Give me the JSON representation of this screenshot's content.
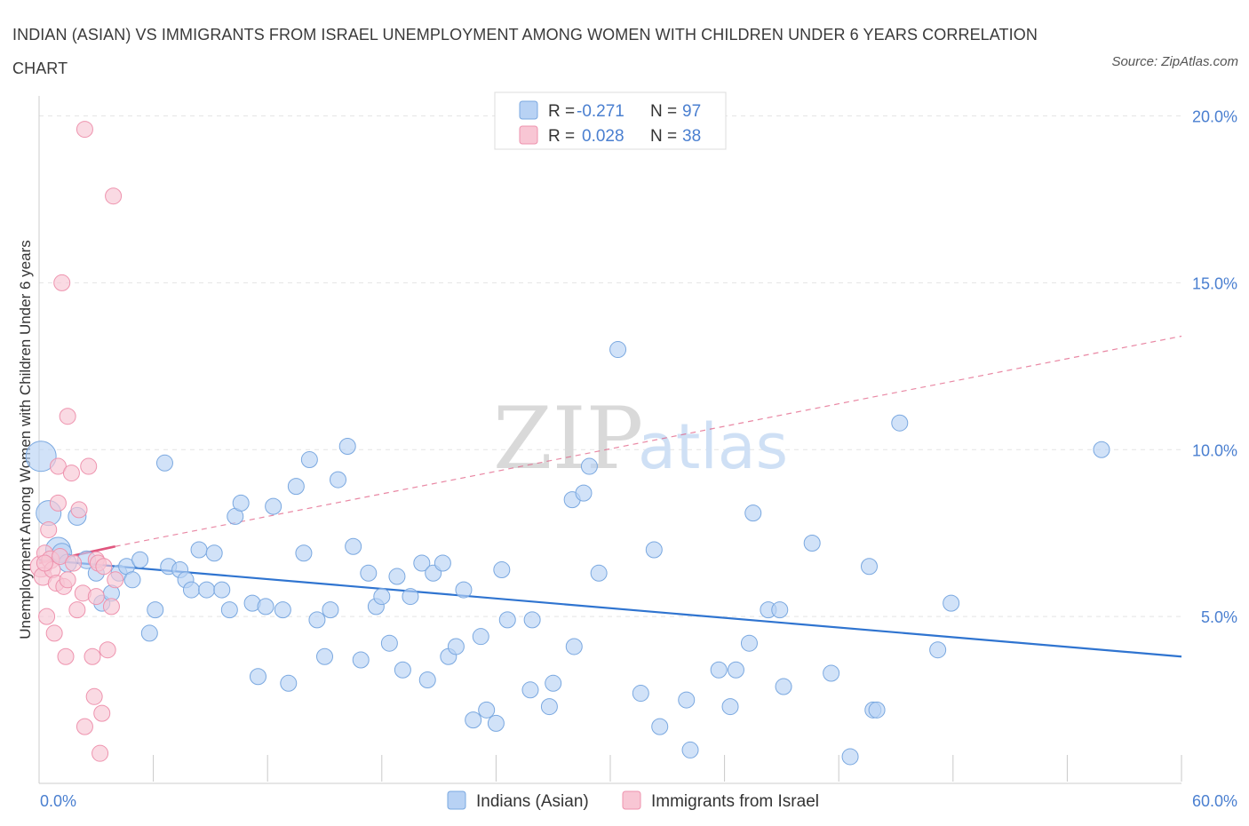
{
  "title": "INDIAN (ASIAN) VS IMMIGRANTS FROM ISRAEL UNEMPLOYMENT AMONG WOMEN WITH CHILDREN UNDER 6 YEARS CORRELATION CHART",
  "source": "Source: ZipAtlas.com",
  "watermark": {
    "zip": "ZIP",
    "atlas": "atlas"
  },
  "colors": {
    "blue_fill": "#b8d2f4",
    "blue_stroke": "#7aa8e0",
    "blue_line": "#2f74d0",
    "pink_fill": "#f8c6d4",
    "pink_stroke": "#ee93ae",
    "pink_line": "#e0557e",
    "tick_text": "#4a7fd0",
    "grid": "#e4e4e4"
  },
  "legend": {
    "rows": [
      {
        "r_label": "R =",
        "r_value": "-0.271",
        "n_label": "N =",
        "n_value": "97"
      },
      {
        "r_label": "R =",
        "r_value": "0.028",
        "n_label": "N =",
        "n_value": "38"
      }
    ]
  },
  "chart_data": {
    "type": "scatter",
    "title": "INDIAN (ASIAN) VS IMMIGRANTS FROM ISRAEL UNEMPLOYMENT AMONG WOMEN WITH CHILDREN UNDER 6 YEARS CORRELATION CHART",
    "xlabel": "",
    "ylabel": "Unemployment Among Women with Children Under 6 years",
    "xlim": [
      0,
      60
    ],
    "ylim": [
      0,
      20.6
    ],
    "x_tick_labels": [
      "0.0%",
      "60.0%"
    ],
    "y_ticks": [
      5,
      10,
      15,
      20
    ],
    "y_tick_labels": [
      "5.0%",
      "10.0%",
      "15.0%",
      "20.0%"
    ],
    "grid": true,
    "legend_position": "bottom",
    "series": [
      {
        "name": "Indians (Asian)",
        "r": -0.271,
        "n": 97,
        "trend": {
          "x": [
            0,
            60
          ],
          "y": [
            6.7,
            3.8
          ],
          "style": "solid"
        },
        "points": [
          {
            "x": 0.1,
            "y": 9.8,
            "s": 17
          },
          {
            "x": 0.5,
            "y": 8.1,
            "s": 14
          },
          {
            "x": 1.0,
            "y": 7.0,
            "s": 14
          },
          {
            "x": 1.2,
            "y": 6.9,
            "s": 11
          },
          {
            "x": 1.5,
            "y": 6.6,
            "s": 10
          },
          {
            "x": 2.0,
            "y": 8.0,
            "s": 10
          },
          {
            "x": 2.5,
            "y": 6.7,
            "s": 10
          },
          {
            "x": 3.0,
            "y": 6.3,
            "s": 9
          },
          {
            "x": 3.3,
            "y": 5.4,
            "s": 9
          },
          {
            "x": 3.8,
            "y": 5.7,
            "s": 9
          },
          {
            "x": 4.2,
            "y": 6.3,
            "s": 9
          },
          {
            "x": 4.6,
            "y": 6.5,
            "s": 9
          },
          {
            "x": 4.9,
            "y": 6.1,
            "s": 9
          },
          {
            "x": 5.3,
            "y": 6.7,
            "s": 9
          },
          {
            "x": 5.8,
            "y": 4.5,
            "s": 9
          },
          {
            "x": 6.1,
            "y": 5.2,
            "s": 9
          },
          {
            "x": 6.6,
            "y": 9.6,
            "s": 9
          },
          {
            "x": 6.8,
            "y": 6.5,
            "s": 9
          },
          {
            "x": 7.4,
            "y": 6.4,
            "s": 9
          },
          {
            "x": 7.7,
            "y": 6.1,
            "s": 9
          },
          {
            "x": 8.0,
            "y": 5.8,
            "s": 9
          },
          {
            "x": 8.4,
            "y": 7.0,
            "s": 9
          },
          {
            "x": 8.8,
            "y": 5.8,
            "s": 9
          },
          {
            "x": 9.2,
            "y": 6.9,
            "s": 9
          },
          {
            "x": 9.6,
            "y": 5.8,
            "s": 9
          },
          {
            "x": 10.0,
            "y": 5.2,
            "s": 9
          },
          {
            "x": 10.3,
            "y": 8.0,
            "s": 9
          },
          {
            "x": 10.6,
            "y": 8.4,
            "s": 9
          },
          {
            "x": 11.2,
            "y": 5.4,
            "s": 9
          },
          {
            "x": 11.5,
            "y": 3.2,
            "s": 9
          },
          {
            "x": 11.9,
            "y": 5.3,
            "s": 9
          },
          {
            "x": 12.3,
            "y": 8.3,
            "s": 9
          },
          {
            "x": 12.8,
            "y": 5.2,
            "s": 9
          },
          {
            "x": 13.1,
            "y": 3.0,
            "s": 9
          },
          {
            "x": 13.5,
            "y": 8.9,
            "s": 9
          },
          {
            "x": 13.9,
            "y": 6.9,
            "s": 9
          },
          {
            "x": 14.2,
            "y": 9.7,
            "s": 9
          },
          {
            "x": 14.6,
            "y": 4.9,
            "s": 9
          },
          {
            "x": 15.0,
            "y": 3.8,
            "s": 9
          },
          {
            "x": 15.3,
            "y": 5.2,
            "s": 9
          },
          {
            "x": 15.7,
            "y": 9.1,
            "s": 9
          },
          {
            "x": 16.2,
            "y": 10.1,
            "s": 9
          },
          {
            "x": 16.5,
            "y": 7.1,
            "s": 9
          },
          {
            "x": 16.9,
            "y": 3.7,
            "s": 9
          },
          {
            "x": 17.3,
            "y": 6.3,
            "s": 9
          },
          {
            "x": 17.7,
            "y": 5.3,
            "s": 9
          },
          {
            "x": 18.0,
            "y": 5.6,
            "s": 9
          },
          {
            "x": 18.4,
            "y": 4.2,
            "s": 9
          },
          {
            "x": 18.8,
            "y": 6.2,
            "s": 9
          },
          {
            "x": 19.1,
            "y": 3.4,
            "s": 9
          },
          {
            "x": 19.5,
            "y": 5.6,
            "s": 9
          },
          {
            "x": 20.1,
            "y": 6.6,
            "s": 9
          },
          {
            "x": 20.4,
            "y": 3.1,
            "s": 9
          },
          {
            "x": 20.7,
            "y": 6.3,
            "s": 9
          },
          {
            "x": 21.2,
            "y": 6.6,
            "s": 9
          },
          {
            "x": 21.5,
            "y": 3.8,
            "s": 9
          },
          {
            "x": 21.9,
            "y": 4.1,
            "s": 9
          },
          {
            "x": 22.3,
            "y": 5.8,
            "s": 9
          },
          {
            "x": 22.8,
            "y": 1.9,
            "s": 9
          },
          {
            "x": 23.2,
            "y": 4.4,
            "s": 9
          },
          {
            "x": 23.5,
            "y": 2.2,
            "s": 9
          },
          {
            "x": 24.0,
            "y": 1.8,
            "s": 9
          },
          {
            "x": 24.3,
            "y": 6.4,
            "s": 9
          },
          {
            "x": 24.6,
            "y": 4.9,
            "s": 9
          },
          {
            "x": 25.8,
            "y": 2.8,
            "s": 9
          },
          {
            "x": 25.9,
            "y": 4.9,
            "s": 9
          },
          {
            "x": 26.8,
            "y": 2.3,
            "s": 9
          },
          {
            "x": 27.0,
            "y": 3.0,
            "s": 9
          },
          {
            "x": 28.0,
            "y": 8.5,
            "s": 9
          },
          {
            "x": 28.1,
            "y": 4.1,
            "s": 9
          },
          {
            "x": 28.6,
            "y": 8.7,
            "s": 9
          },
          {
            "x": 28.9,
            "y": 9.5,
            "s": 9
          },
          {
            "x": 29.4,
            "y": 6.3,
            "s": 9
          },
          {
            "x": 30.4,
            "y": 13.0,
            "s": 9
          },
          {
            "x": 31.6,
            "y": 2.7,
            "s": 9
          },
          {
            "x": 32.3,
            "y": 7.0,
            "s": 9
          },
          {
            "x": 32.6,
            "y": 1.7,
            "s": 9
          },
          {
            "x": 34.0,
            "y": 2.5,
            "s": 9
          },
          {
            "x": 34.2,
            "y": 1.0,
            "s": 9
          },
          {
            "x": 35.7,
            "y": 3.4,
            "s": 9
          },
          {
            "x": 36.6,
            "y": 3.4,
            "s": 9
          },
          {
            "x": 36.3,
            "y": 2.3,
            "s": 9
          },
          {
            "x": 37.3,
            "y": 4.2,
            "s": 9
          },
          {
            "x": 37.5,
            "y": 8.1,
            "s": 9
          },
          {
            "x": 38.3,
            "y": 5.2,
            "s": 9
          },
          {
            "x": 38.9,
            "y": 5.2,
            "s": 9
          },
          {
            "x": 39.1,
            "y": 2.9,
            "s": 9
          },
          {
            "x": 40.6,
            "y": 7.2,
            "s": 9
          },
          {
            "x": 41.6,
            "y": 3.3,
            "s": 9
          },
          {
            "x": 42.6,
            "y": 0.8,
            "s": 9
          },
          {
            "x": 43.6,
            "y": 6.5,
            "s": 9
          },
          {
            "x": 43.8,
            "y": 2.2,
            "s": 9
          },
          {
            "x": 44.0,
            "y": 2.2,
            "s": 9
          },
          {
            "x": 45.2,
            "y": 10.8,
            "s": 9
          },
          {
            "x": 47.2,
            "y": 4.0,
            "s": 9
          },
          {
            "x": 47.9,
            "y": 5.4,
            "s": 9
          },
          {
            "x": 55.8,
            "y": 10.0,
            "s": 9
          }
        ]
      },
      {
        "name": "Immigrants from Israel",
        "r": 0.028,
        "n": 38,
        "trend": {
          "x": [
            0,
            4
          ],
          "y": [
            6.6,
            7.1
          ],
          "style": "solid",
          "extended": {
            "x": [
              4,
              60
            ],
            "y": [
              7.1,
              13.4
            ],
            "style": "dashed"
          }
        },
        "points": [
          {
            "x": 0.1,
            "y": 6.5,
            "s": 12
          },
          {
            "x": 0.2,
            "y": 6.2,
            "s": 10
          },
          {
            "x": 0.3,
            "y": 6.9,
            "s": 9
          },
          {
            "x": 0.4,
            "y": 5.0,
            "s": 9
          },
          {
            "x": 0.5,
            "y": 7.6,
            "s": 9
          },
          {
            "x": 0.6,
            "y": 6.7,
            "s": 10
          },
          {
            "x": 0.7,
            "y": 6.4,
            "s": 9
          },
          {
            "x": 0.8,
            "y": 4.5,
            "s": 9
          },
          {
            "x": 0.9,
            "y": 6.0,
            "s": 9
          },
          {
            "x": 1.0,
            "y": 8.4,
            "s": 9
          },
          {
            "x": 1.0,
            "y": 9.5,
            "s": 9
          },
          {
            "x": 1.1,
            "y": 6.8,
            "s": 9
          },
          {
            "x": 1.2,
            "y": 15.0,
            "s": 9
          },
          {
            "x": 1.3,
            "y": 5.9,
            "s": 9
          },
          {
            "x": 1.4,
            "y": 3.8,
            "s": 9
          },
          {
            "x": 1.5,
            "y": 6.1,
            "s": 9
          },
          {
            "x": 1.5,
            "y": 11.0,
            "s": 9
          },
          {
            "x": 1.7,
            "y": 9.3,
            "s": 9
          },
          {
            "x": 1.8,
            "y": 6.6,
            "s": 9
          },
          {
            "x": 2.0,
            "y": 5.2,
            "s": 9
          },
          {
            "x": 2.1,
            "y": 8.2,
            "s": 9
          },
          {
            "x": 2.3,
            "y": 5.7,
            "s": 9
          },
          {
            "x": 2.4,
            "y": 1.7,
            "s": 9
          },
          {
            "x": 2.6,
            "y": 9.5,
            "s": 9
          },
          {
            "x": 2.8,
            "y": 3.8,
            "s": 9
          },
          {
            "x": 2.9,
            "y": 2.6,
            "s": 9
          },
          {
            "x": 3.0,
            "y": 6.7,
            "s": 9
          },
          {
            "x": 3.0,
            "y": 5.6,
            "s": 9
          },
          {
            "x": 3.1,
            "y": 6.6,
            "s": 9
          },
          {
            "x": 3.2,
            "y": 0.9,
            "s": 9
          },
          {
            "x": 3.3,
            "y": 2.1,
            "s": 9
          },
          {
            "x": 3.4,
            "y": 6.5,
            "s": 9
          },
          {
            "x": 3.6,
            "y": 4.0,
            "s": 9
          },
          {
            "x": 3.8,
            "y": 5.3,
            "s": 9
          },
          {
            "x": 3.9,
            "y": 17.6,
            "s": 9
          },
          {
            "x": 4.0,
            "y": 6.1,
            "s": 9
          },
          {
            "x": 2.4,
            "y": 19.6,
            "s": 9
          },
          {
            "x": 0.3,
            "y": 6.6,
            "s": 9
          }
        ]
      }
    ]
  }
}
